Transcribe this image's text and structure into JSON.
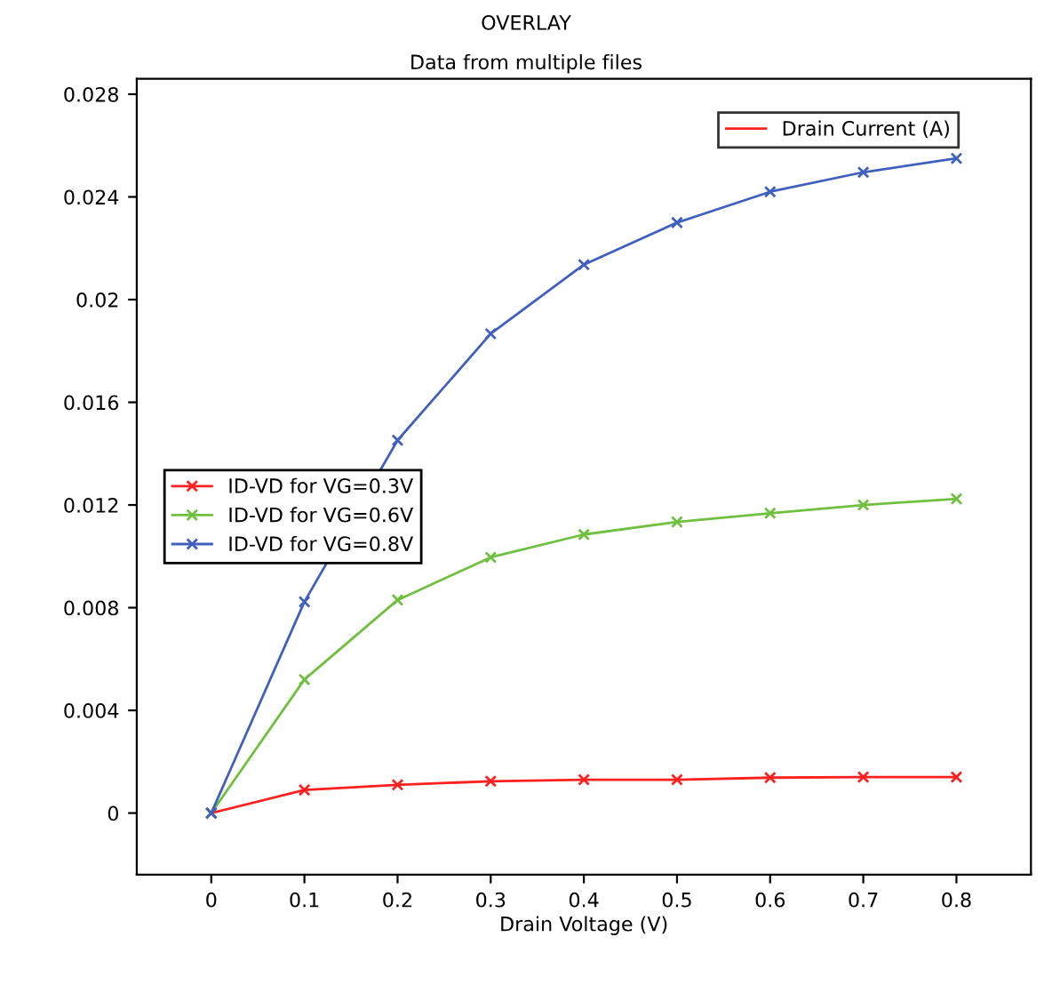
{
  "chart_data": {
    "type": "line",
    "title": "OVERLAY",
    "subtitle": "Data from multiple files",
    "xlabel": "Drain Voltage (V)",
    "x": [
      0,
      0.1,
      0.2,
      0.3,
      0.4,
      0.5,
      0.6,
      0.7,
      0.8
    ],
    "series": [
      {
        "name": "ID-VD for VG=0.3V",
        "color": "#ff2020",
        "values": [
          0,
          0.0009,
          0.0011,
          0.00124,
          0.0013,
          0.0013,
          0.00138,
          0.0014,
          0.0014
        ]
      },
      {
        "name": "ID-VD for VG=0.6V",
        "color": "#70c040",
        "values": [
          0,
          0.0052,
          0.0083,
          0.00996,
          0.01085,
          0.01134,
          0.01168,
          0.012,
          0.01224
        ]
      },
      {
        "name": "ID-VD for VG=0.8V",
        "color": "#4060c0",
        "values": [
          0,
          0.00823,
          0.01452,
          0.01867,
          0.02136,
          0.023,
          0.0242,
          0.02496,
          0.0255
        ]
      }
    ],
    "xlim": [
      -0.08,
      0.88
    ],
    "ylim": [
      -0.0024,
      0.0286
    ],
    "xticks": [
      0,
      0.1,
      0.2,
      0.3,
      0.4,
      0.5,
      0.6,
      0.7,
      0.8
    ],
    "yticks": [
      0,
      0.004,
      0.008,
      0.012,
      0.016,
      0.02,
      0.024,
      0.028
    ],
    "annotations": [
      "Drain Current (A)"
    ],
    "legend": "left",
    "marker": "cross",
    "line_style": "solid",
    "grid": false
  }
}
